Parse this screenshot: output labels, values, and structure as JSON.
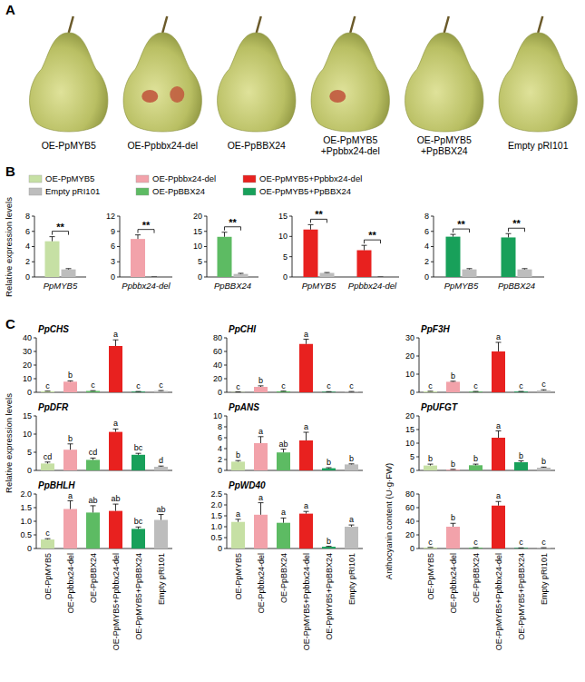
{
  "panel_a": {
    "letter": "A",
    "labels": [
      "OE-PpMYB5",
      "OE-Ppbbx24-del",
      "OE-PpBBX24",
      "OE-PpMYB5+Ppbbx24-del",
      "OE-PpMYB5+PpBBX24",
      "Empty pRI101"
    ]
  },
  "panel_b": {
    "letter": "B",
    "y_label": "Relative expression levels"
  },
  "panel_c": {
    "letter": "C",
    "y_label": "Relative expression levels"
  },
  "chart_data": [
    {
      "type": "bar",
      "categories": [
        "PpMYB5"
      ],
      "series": [
        {
          "name": "OE-PpMYB5",
          "color": "#c6e0a4",
          "values": [
            4.7
          ],
          "errors": [
            0.6
          ]
        },
        {
          "name": "Empty pRI101",
          "color": "#bdbdbd",
          "values": [
            1.0
          ],
          "errors": [
            0.1
          ]
        }
      ],
      "ylim": [
        0,
        8
      ],
      "yticks": [
        0,
        2,
        4,
        6,
        8
      ],
      "significance": [
        "**"
      ]
    },
    {
      "type": "bar",
      "categories": [
        "Ppbbx24-del"
      ],
      "series": [
        {
          "name": "OE-Ppbbx24-del",
          "color": "#f2a2aa",
          "values": [
            7.5
          ],
          "errors": [
            0.8
          ]
        },
        {
          "name": "Empty pRI101",
          "color": "#bdbdbd",
          "values": [
            0
          ],
          "errors": [
            0
          ]
        }
      ],
      "ylim": [
        0,
        12
      ],
      "yticks": [
        0,
        3,
        6,
        9,
        12
      ],
      "significance": [
        "**"
      ]
    },
    {
      "type": "bar",
      "categories": [
        "PpBBX24"
      ],
      "series": [
        {
          "name": "OE-PpBBX24",
          "color": "#5dbb63",
          "values": [
            13.2
          ],
          "errors": [
            1.5
          ]
        },
        {
          "name": "Empty pRI101",
          "color": "#bdbdbd",
          "values": [
            1.0
          ],
          "errors": [
            0.2
          ]
        }
      ],
      "ylim": [
        0,
        20
      ],
      "yticks": [
        0,
        5,
        10,
        15,
        20
      ],
      "significance": [
        "**"
      ]
    },
    {
      "type": "bar",
      "categories": [
        "PpMYB5",
        "Ppbbx24-del"
      ],
      "series": [
        {
          "name": "OE-PpMYB5+Ppbbx24-del",
          "color": "#e8211f",
          "values": [
            11.7,
            6.6
          ],
          "errors": [
            1.2,
            1.2
          ]
        },
        {
          "name": "Empty pRI101",
          "color": "#bdbdbd",
          "values": [
            1.0,
            0
          ],
          "errors": [
            0.1,
            0
          ]
        }
      ],
      "ylim": [
        0,
        15
      ],
      "yticks": [
        0,
        5,
        10,
        15
      ],
      "significance": [
        "**",
        "**"
      ]
    },
    {
      "type": "bar",
      "categories": [
        "PpMYB5",
        "PpBBX24"
      ],
      "series": [
        {
          "name": "OE-PpMYB5+PpBBX24",
          "color": "#18a05a",
          "values": [
            5.3,
            5.2
          ],
          "errors": [
            0.3,
            0.5
          ]
        },
        {
          "name": "Empty pRI101",
          "color": "#bdbdbd",
          "values": [
            1.0,
            1.0
          ],
          "errors": [
            0.1,
            0.1
          ]
        }
      ],
      "ylim": [
        0,
        8
      ],
      "yticks": [
        0,
        2,
        4,
        6,
        8
      ],
      "significance": [
        "**",
        "**"
      ]
    },
    {
      "type": "bar",
      "title": "PpCHS",
      "categories": [
        null,
        null,
        null,
        null,
        null,
        null
      ],
      "values": [
        0.8,
        7.8,
        1.0,
        34,
        0.5,
        1.0
      ],
      "errors": [
        0.1,
        0.6,
        0.2,
        4.5,
        0.1,
        0.3
      ],
      "letters": [
        "c",
        "b",
        "c",
        "a",
        "c",
        "c"
      ],
      "colors": [
        "#c6e0a4",
        "#f2a2aa",
        "#5dbb63",
        "#e8211f",
        "#18a05a",
        "#bdbdbd"
      ],
      "ylim": [
        0,
        40
      ],
      "yticks": [
        0,
        10,
        20,
        30,
        40
      ]
    },
    {
      "type": "bar",
      "title": "PpCHI",
      "categories": [
        null,
        null,
        null,
        null,
        null,
        null
      ],
      "values": [
        0.5,
        8,
        1.5,
        71,
        0.8,
        1.0
      ],
      "errors": [
        0.1,
        1.5,
        0.3,
        7,
        0.2,
        0.2
      ],
      "letters": [
        "c",
        "b",
        "c",
        "a",
        "c",
        "c"
      ],
      "colors": [
        "#c6e0a4",
        "#f2a2aa",
        "#5dbb63",
        "#e8211f",
        "#18a05a",
        "#bdbdbd"
      ],
      "ylim": [
        0,
        80
      ],
      "yticks": [
        0,
        20,
        40,
        60,
        80
      ]
    },
    {
      "type": "bar",
      "title": "PpF3H",
      "categories": [
        null,
        null,
        null,
        null,
        null,
        null
      ],
      "values": [
        0.5,
        5.8,
        0.4,
        22.5,
        0.4,
        1.0
      ],
      "errors": [
        0.1,
        0.3,
        0.1,
        5,
        0.1,
        0.4
      ],
      "letters": [
        "c",
        "b",
        "c",
        "a",
        "c",
        "c"
      ],
      "colors": [
        "#c6e0a4",
        "#f2a2aa",
        "#5dbb63",
        "#e8211f",
        "#18a05a",
        "#bdbdbd"
      ],
      "ylim": [
        0,
        30
      ],
      "yticks": [
        0,
        10,
        20,
        30
      ]
    },
    {
      "type": "bar",
      "title": "PpDFR",
      "categories": [
        null,
        null,
        null,
        null,
        null,
        null
      ],
      "values": [
        1.9,
        5.7,
        2.9,
        10.6,
        4.3,
        1.0
      ],
      "errors": [
        0.4,
        1.6,
        0.5,
        0.8,
        0.4,
        0.2
      ],
      "letters": [
        "cd",
        "b",
        "cd",
        "a",
        "bc",
        "d"
      ],
      "colors": [
        "#c6e0a4",
        "#f2a2aa",
        "#5dbb63",
        "#e8211f",
        "#18a05a",
        "#bdbdbd"
      ],
      "ylim": [
        0,
        15
      ],
      "yticks": [
        0,
        5,
        10,
        15
      ]
    },
    {
      "type": "bar",
      "title": "PpANS",
      "categories": [
        null,
        null,
        null,
        null,
        null,
        null
      ],
      "values": [
        1.6,
        5.0,
        3.3,
        5.5,
        0.4,
        1.1
      ],
      "errors": [
        0.2,
        1.2,
        0.6,
        1.5,
        0.1,
        0.1
      ],
      "letters": [
        "b",
        "a",
        "ab",
        "a",
        "b",
        "b"
      ],
      "colors": [
        "#c6e0a4",
        "#f2a2aa",
        "#5dbb63",
        "#e8211f",
        "#18a05a",
        "#bdbdbd"
      ],
      "ylim": [
        0,
        10
      ],
      "yticks": [
        0,
        2,
        4,
        6,
        8,
        10
      ]
    },
    {
      "type": "bar",
      "title": "PpUFGT",
      "categories": [
        null,
        null,
        null,
        null,
        null,
        null
      ],
      "values": [
        1.8,
        0.3,
        1.9,
        12,
        3.0,
        1.0
      ],
      "errors": [
        0.5,
        0.1,
        0.4,
        2.5,
        0.5,
        0.2
      ],
      "letters": [
        "b",
        "b",
        "b",
        "a",
        "b",
        "b"
      ],
      "colors": [
        "#c6e0a4",
        "#f2a2aa",
        "#5dbb63",
        "#e8211f",
        "#18a05a",
        "#bdbdbd"
      ],
      "ylim": [
        0,
        20
      ],
      "yticks": [
        0,
        5,
        10,
        15,
        20
      ]
    },
    {
      "type": "bar",
      "title": "PpBHLH",
      "categories": [
        "OE-PpMYB5",
        "OE-Ppbbx24-del",
        "OE-PpBBX24",
        "OE-PpMYB5+Ppbbx24-del",
        "OE-PpMYB5+PpBBX24",
        "Empty pRI101"
      ],
      "values": [
        0.33,
        1.45,
        1.32,
        1.38,
        0.72,
        1.05
      ],
      "errors": [
        0.03,
        0.3,
        0.25,
        0.25,
        0.07,
        0.2
      ],
      "letters": [
        "c",
        "a",
        "ab",
        "ab",
        "bc",
        "ab"
      ],
      "colors": [
        "#c6e0a4",
        "#f2a2aa",
        "#5dbb63",
        "#e8211f",
        "#18a05a",
        "#bdbdbd"
      ],
      "ylim": [
        0,
        2
      ],
      "yticks": [
        0,
        0.5,
        {
          "value": 1,
          "label": "1.0"
        },
        1.5,
        {
          "value": 2,
          "label": "2.0"
        }
      ]
    },
    {
      "type": "bar",
      "title": "PpWD40",
      "categories": [
        "OE-PpMYB5",
        "OE-Ppbbx24-del",
        "OE-PpBBX24",
        "OE-PpMYB5+Ppbbx24-del",
        "OE-PpMYB5+PpBBX24",
        "Empty pRI101"
      ],
      "values": [
        1.22,
        1.55,
        1.18,
        1.6,
        0.08,
        1.0
      ],
      "errors": [
        0.12,
        0.55,
        0.22,
        0.1,
        0.02,
        0.08
      ],
      "letters": [
        "a",
        "a",
        "a",
        "a",
        "b",
        "a"
      ],
      "colors": [
        "#c6e0a4",
        "#f2a2aa",
        "#5dbb63",
        "#e8211f",
        "#18a05a",
        "#bdbdbd"
      ],
      "ylim": [
        0,
        2.5
      ],
      "yticks": [
        0,
        0.5,
        {
          "value": 1,
          "label": "1.0"
        },
        1.5,
        {
          "value": 2,
          "label": "2.0"
        },
        2.5
      ]
    },
    {
      "type": "bar",
      "y_label": "Anthocyanin content (U·g·FW)",
      "categories": [
        "OE-PpMYB5",
        "OE-Ppbbx24-del",
        "OE-PpBBX24",
        "OE-PpMYB5+Ppbbx24-del",
        "OE-PpMYB5+PpBBX24",
        "Empty pRI101"
      ],
      "values": [
        1.5,
        32,
        1.2,
        63,
        0.8,
        1.0
      ],
      "errors": [
        0.2,
        5,
        0.2,
        6,
        0.1,
        0.2
      ],
      "letters": [
        "c",
        "b",
        "c",
        "a",
        "c",
        "c"
      ],
      "colors": [
        "#c6e0a4",
        "#f2a2aa",
        "#5dbb63",
        "#e8211f",
        "#18a05a",
        "#bdbdbd"
      ],
      "ylim": [
        0,
        80
      ],
      "yticks": [
        0,
        20,
        40,
        60,
        80
      ]
    }
  ]
}
